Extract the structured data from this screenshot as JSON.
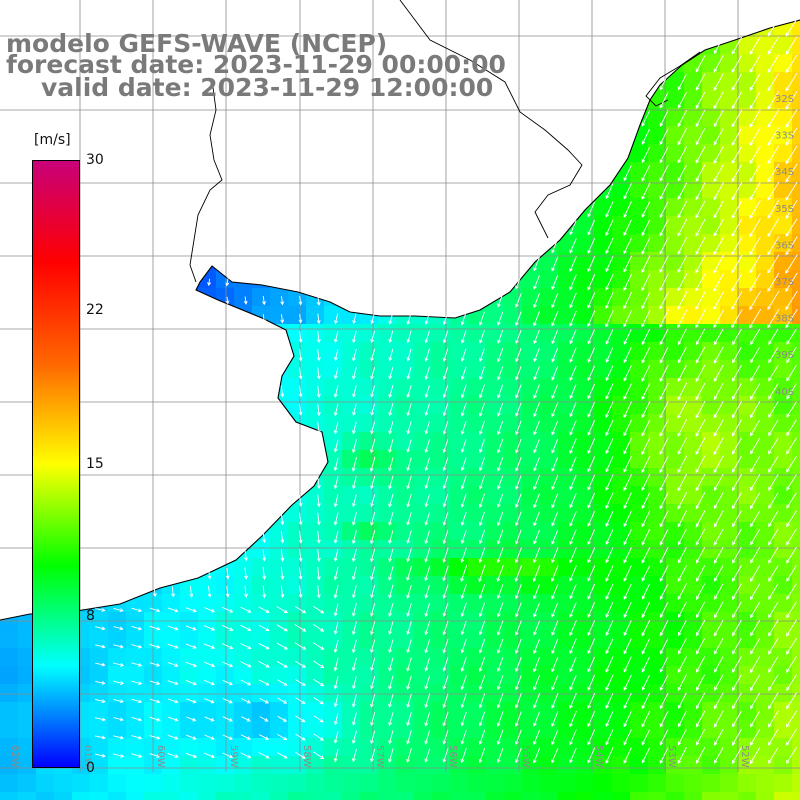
{
  "title": {
    "model": "modelo GEFS-WAVE (NCEP)",
    "forecast": "forecast date: 2023-11-29 00:00:00",
    "valid": "valid date: 2023-11-29 12:00:00"
  },
  "colorbar": {
    "unit": "[m/s]",
    "ticks": [
      "30",
      "22",
      "15",
      "8",
      "0"
    ],
    "min": 0,
    "max": 30,
    "colors": [
      "#0000ff",
      "#00ffff",
      "#00ff00",
      "#ffff00",
      "#ff6600",
      "#ff0000",
      "#c8007a"
    ]
  },
  "map": {
    "lat_labels": [
      "32S",
      "33S",
      "34S",
      "35S",
      "36S",
      "37S",
      "38S",
      "39S",
      "40S"
    ],
    "lon_labels": [
      "62W",
      "61W",
      "60W",
      "59W",
      "58W",
      "57W",
      "56W",
      "55W",
      "54W",
      "53W",
      "52W"
    ],
    "land_color": "#ffffff",
    "coast_color": "#000000",
    "grid_color": "#8c8c8c"
  }
}
